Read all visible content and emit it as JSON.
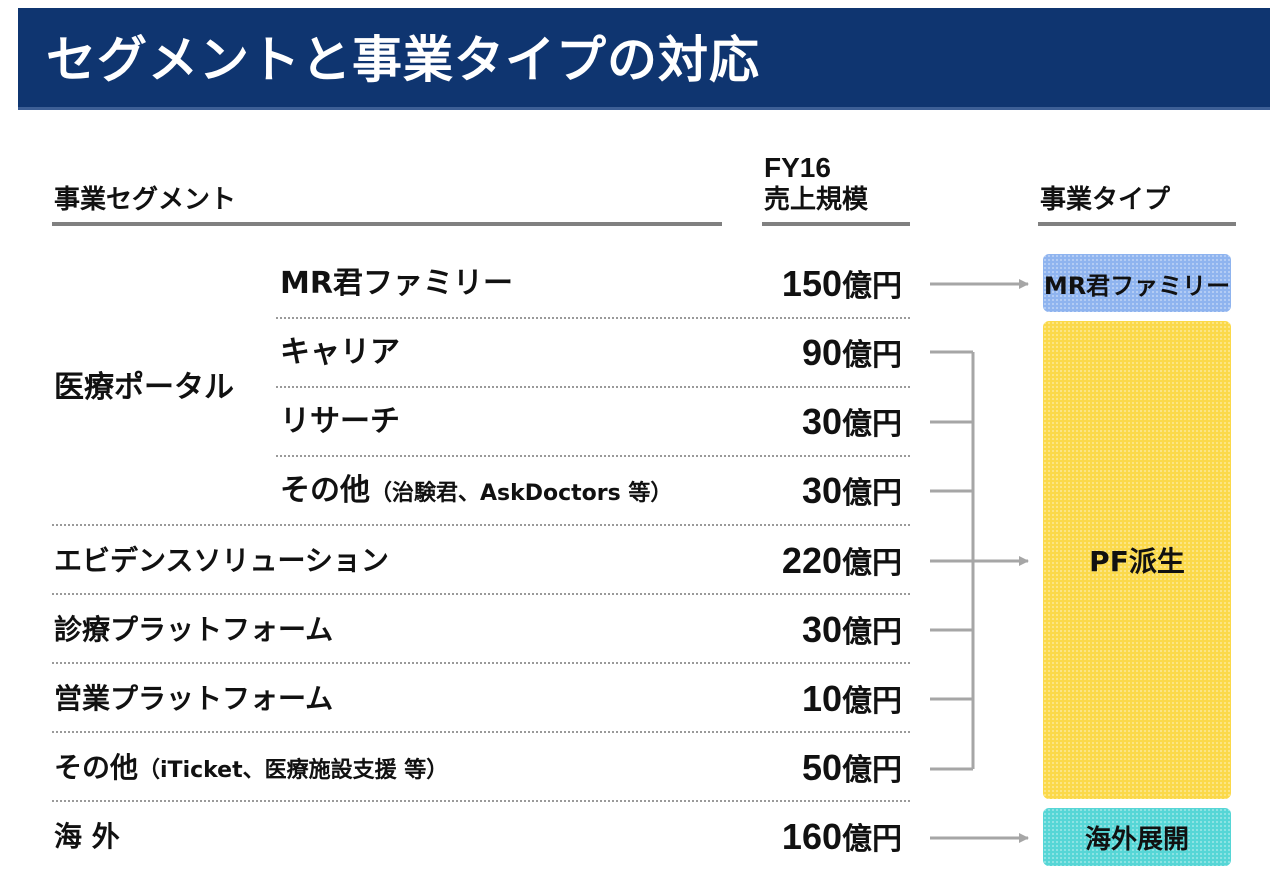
{
  "title": "セグメントと事業タイプの対応",
  "headers": {
    "segment": "事業セグメント",
    "sales_line1": "FY16",
    "sales_line2": "売上規模",
    "type": "事業タイプ"
  },
  "rows": [
    {
      "group": "医療ポータル",
      "label": "MR君ファミリー",
      "note": "",
      "amount": "150",
      "unit": "億円"
    },
    {
      "group": "医療ポータル",
      "label": "キャリア",
      "note": "",
      "amount": "90",
      "unit": "億円"
    },
    {
      "group": "医療ポータル",
      "label": "リサーチ",
      "note": "",
      "amount": "30",
      "unit": "億円"
    },
    {
      "group": "医療ポータル",
      "label": "その他",
      "note": "（治験君、AskDoctors 等）",
      "amount": "30",
      "unit": "億円"
    },
    {
      "group": "",
      "label": "エビデンスソリューション",
      "note": "",
      "amount": "220",
      "unit": "億円"
    },
    {
      "group": "",
      "label": "診療プラットフォーム",
      "note": "",
      "amount": "30",
      "unit": "億円"
    },
    {
      "group": "",
      "label": "営業プラットフォーム",
      "note": "",
      "amount": "10",
      "unit": "億円"
    },
    {
      "group": "",
      "label": "その他",
      "note": "（iTicket、医療施設支援 等）",
      "amount": "50",
      "unit": "億円"
    },
    {
      "group": "",
      "label": "海 外",
      "note": "",
      "amount": "160",
      "unit": "億円"
    }
  ],
  "group_label": "医療ポータル",
  "types": {
    "mr": "MR君ファミリー",
    "pf": "PF派生",
    "overseas": "海外展開"
  },
  "colors": {
    "title_bg": "#0f3570",
    "mr_box": "#8fb4ef",
    "pf_box": "#fbd94a",
    "overseas_box": "#56d6d6",
    "connector": "#a6a6a6"
  }
}
